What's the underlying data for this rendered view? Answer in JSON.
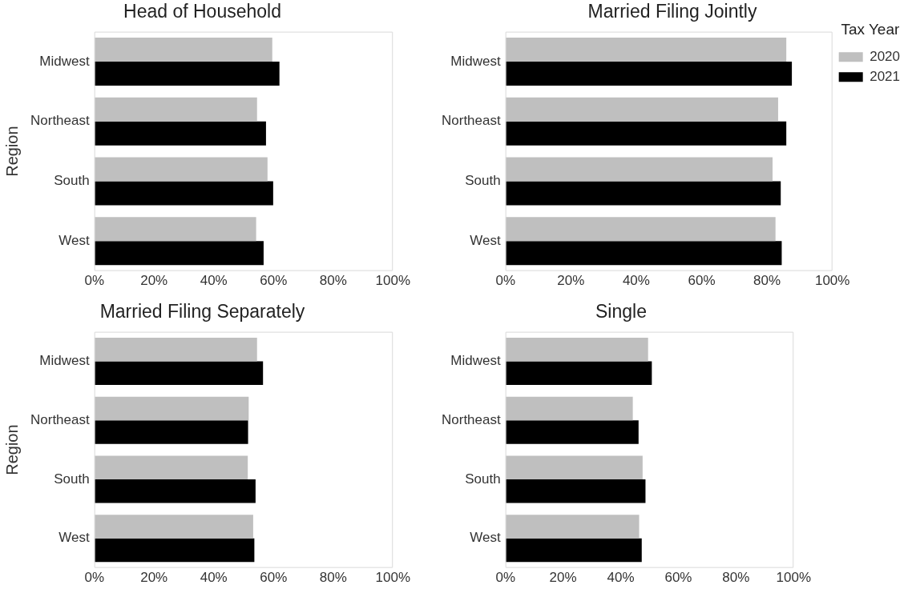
{
  "chart_data": [
    {
      "type": "bar",
      "orientation": "horizontal",
      "title": "Head of Household",
      "ylabel": "Region",
      "categories": [
        "Midwest",
        "Northeast",
        "South",
        "West"
      ],
      "xlim": [
        0,
        100
      ],
      "xticks": [
        {
          "value": 0,
          "label": "0%"
        },
        {
          "value": 20,
          "label": "20%"
        },
        {
          "value": 40,
          "label": "40%"
        },
        {
          "value": 60,
          "label": "60%"
        },
        {
          "value": 80,
          "label": "80%"
        },
        {
          "value": 100,
          "label": "100%"
        }
      ],
      "grid": false,
      "legend": false,
      "series": [
        {
          "color": "#bfbfbf",
          "values": [
            59.6,
            54.5,
            58.0,
            54.2
          ]
        },
        {
          "color": "#000000",
          "values": [
            62.0,
            57.5,
            59.9,
            56.7
          ]
        }
      ]
    },
    {
      "type": "bar",
      "orientation": "horizontal",
      "title": "Married Filing Jointly",
      "legend_title": "Tax Year",
      "categories": [
        "Midwest",
        "Northeast",
        "South",
        "West"
      ],
      "xlim": [
        0,
        100
      ],
      "xticks": [
        {
          "value": 0,
          "label": "0%"
        },
        {
          "value": 20,
          "label": "20%"
        },
        {
          "value": 40,
          "label": "40%"
        },
        {
          "value": 60,
          "label": "60%"
        },
        {
          "value": 80,
          "label": "80%"
        },
        {
          "value": 100,
          "label": "100%"
        }
      ],
      "grid": false,
      "legend": "right",
      "series": [
        {
          "name": "2020",
          "color": "#bfbfbf",
          "values": [
            85.9,
            83.4,
            81.7,
            82.6
          ]
        },
        {
          "name": "2021",
          "color": "#000000",
          "values": [
            87.6,
            85.9,
            84.2,
            84.5
          ]
        }
      ]
    },
    {
      "type": "bar",
      "orientation": "horizontal",
      "title": "Married Filing Separately",
      "ylabel": "Region",
      "categories": [
        "Midwest",
        "Northeast",
        "South",
        "West"
      ],
      "xlim": [
        0,
        100
      ],
      "xticks": [
        {
          "value": 0,
          "label": "0%"
        },
        {
          "value": 20,
          "label": "20%"
        },
        {
          "value": 40,
          "label": "40%"
        },
        {
          "value": 60,
          "label": "60%"
        },
        {
          "value": 80,
          "label": "80%"
        },
        {
          "value": 100,
          "label": "100%"
        }
      ],
      "grid": false,
      "legend": false,
      "series": [
        {
          "color": "#bfbfbf",
          "values": [
            54.5,
            51.7,
            51.4,
            53.2
          ]
        },
        {
          "color": "#000000",
          "values": [
            56.5,
            51.5,
            54.0,
            53.6
          ]
        }
      ]
    },
    {
      "type": "bar",
      "orientation": "horizontal",
      "title": "Single",
      "categories": [
        "Midwest",
        "Northeast",
        "South",
        "West"
      ],
      "xlim": [
        0,
        100
      ],
      "xticks": [
        {
          "value": 0,
          "label": "0%"
        },
        {
          "value": 20,
          "label": "20%"
        },
        {
          "value": 40,
          "label": "40%"
        },
        {
          "value": 60,
          "label": "60%"
        },
        {
          "value": 80,
          "label": "80%"
        },
        {
          "value": 100,
          "label": "100%"
        }
      ],
      "grid": false,
      "legend": false,
      "series": [
        {
          "color": "#bfbfbf",
          "values": [
            49.5,
            44.2,
            47.6,
            46.4
          ]
        },
        {
          "color": "#000000",
          "values": [
            50.8,
            46.2,
            48.6,
            47.3
          ]
        }
      ]
    }
  ]
}
